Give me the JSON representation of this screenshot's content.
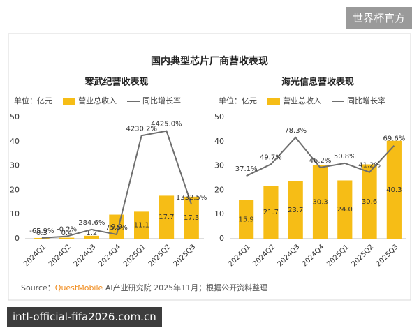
{
  "figure": {
    "badge": "世界杯官方",
    "title": "国内典型芯片厂商营收表现",
    "source_label": "Source：",
    "source_brand": "QuestMobile",
    "source_text": "AI产业研究院 2025年11月；根据公开资料整理",
    "footer_url": "intl-official-fifa2026.com.cn"
  },
  "chart_data": [
    {
      "type": "combo",
      "title": "寒武纪营收表现",
      "unit_label": "单位：亿元",
      "categories": [
        "2024Q1",
        "2024Q2",
        "2024Q3",
        "2024Q4",
        "2025Q1",
        "2025Q2",
        "2025Q3"
      ],
      "series": [
        {
          "name": "营业总收入",
          "type": "bar",
          "color": "#f6bd16",
          "values": [
            0.3,
            0.4,
            1.2,
            9.9,
            11.1,
            17.7,
            17.3
          ]
        },
        {
          "name": "同比增长率",
          "type": "line",
          "color": "#6e6e6e",
          "axis": "y2",
          "values": [
            -65.9,
            -0.2,
            284.6,
            75.5,
            4230.2,
            4425.0,
            1332.5
          ],
          "value_labels": [
            "-65.9%",
            "-0.2%",
            "284.6%",
            "75.5%",
            "4230.2%",
            "4425.0%",
            "1332.5%"
          ]
        }
      ],
      "ylim": [
        0,
        50
      ],
      "yticks": [
        0,
        10,
        20,
        30,
        40,
        50
      ],
      "y2lim": [
        -100,
        5000
      ],
      "grid": false
    },
    {
      "type": "combo",
      "title": "海光信息营收表现",
      "unit_label": "单位：亿元",
      "categories": [
        "2024Q1",
        "2024Q2",
        "2024Q3",
        "2024Q4",
        "2025Q1",
        "2025Q2",
        "2025Q3"
      ],
      "series": [
        {
          "name": "营业总收入",
          "type": "bar",
          "color": "#f6bd16",
          "values": [
            15.9,
            21.7,
            23.7,
            30.3,
            24.0,
            30.6,
            40.3
          ],
          "value_labels": [
            "15.9",
            "21.7",
            "23.7",
            "30.3",
            "24.0",
            "30.6",
            "40.3"
          ]
        },
        {
          "name": "同比增长率",
          "type": "line",
          "color": "#6e6e6e",
          "axis": "y2",
          "values": [
            37.1,
            49.7,
            78.3,
            46.2,
            50.8,
            41.2,
            69.6
          ],
          "value_labels": [
            "37.1%",
            "49.7%",
            "78.3%",
            "46.2%",
            "50.8%",
            "41.2%",
            "69.6%"
          ]
        }
      ],
      "ylim": [
        0,
        50
      ],
      "yticks": [
        0,
        10,
        20,
        30,
        40,
        50
      ],
      "y2lim": [
        -30,
        100
      ],
      "grid": false
    }
  ]
}
